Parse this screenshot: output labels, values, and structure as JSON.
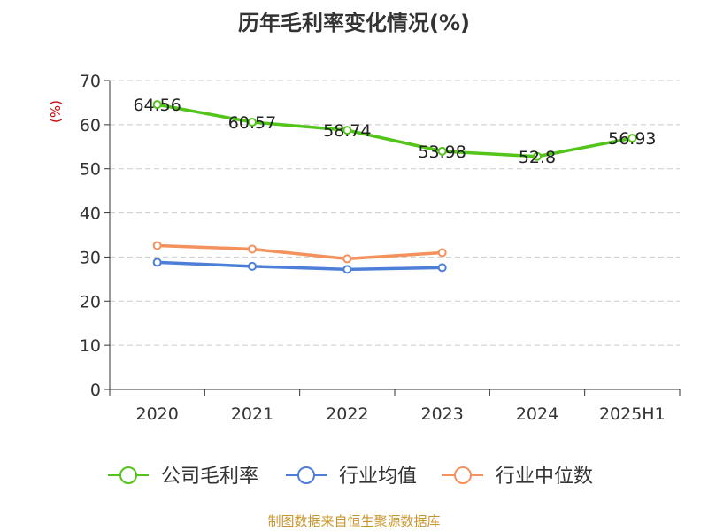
{
  "chart_data": {
    "type": "line",
    "title": "历年毛利率变化情况(%)",
    "xlabel": "",
    "ylabel": "(%)",
    "categories": [
      "2020",
      "2021",
      "2022",
      "2023",
      "2024",
      "2025H1"
    ],
    "ylim": [
      0,
      70
    ],
    "yticks": [
      "0",
      "10",
      "20",
      "30",
      "40",
      "50",
      "60",
      "70"
    ],
    "grid": true,
    "legend_position": "bottom",
    "series": [
      {
        "name": "公司毛利率",
        "color": "#52c41a",
        "values": [
          64.56,
          60.57,
          58.74,
          53.98,
          52.8,
          56.93
        ],
        "labels": [
          "64.56",
          "60.57",
          "58.74",
          "53.98",
          "52.8",
          "56.93"
        ]
      },
      {
        "name": "行业均值",
        "color": "#4e7fd8",
        "values": [
          28.8,
          27.9,
          27.2,
          27.6,
          null,
          null
        ],
        "labels": []
      },
      {
        "name": "行业中位数",
        "color": "#f4925e",
        "values": [
          32.6,
          31.8,
          29.6,
          31.0,
          null,
          null
        ],
        "labels": []
      }
    ],
    "source": "制图数据来自恒生聚源数据库"
  }
}
